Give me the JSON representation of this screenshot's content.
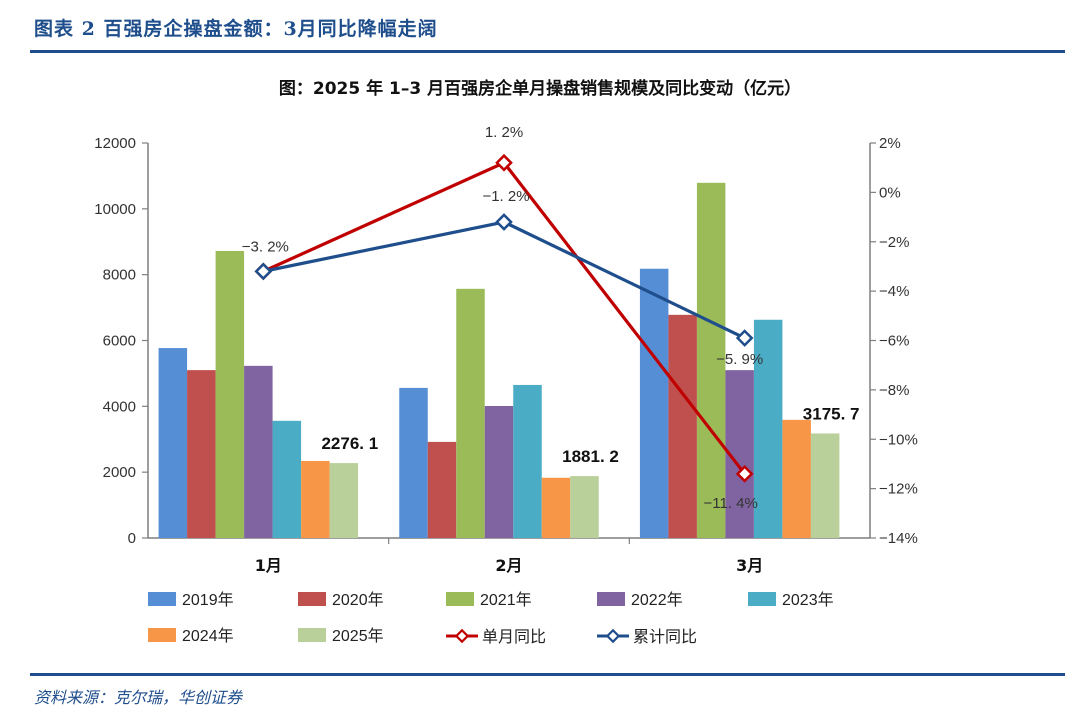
{
  "header": {
    "caption": "图表 2  百强房企操盘金额：3月同比降幅走阔"
  },
  "footer": {
    "source": "资料来源：克尔瑞，华创证券"
  },
  "chart_data": {
    "type": "bar",
    "title": "图：2025 年 1–3 月百强房企单月操盘销售规模及同比变动（亿元）",
    "categories": [
      "1月",
      "2月",
      "3月"
    ],
    "xlabel": "",
    "ylabel": "",
    "ylim": [
      0,
      12000
    ],
    "yticks": [
      "0",
      "2000",
      "4000",
      "6000",
      "8000",
      "10000",
      "12000"
    ],
    "y2lim": [
      -14,
      2
    ],
    "y2ticks": [
      "-14%",
      "-12%",
      "-10%",
      "-8%",
      "-6%",
      "-4%",
      "-2%",
      "0%",
      "2%"
    ],
    "grid": false,
    "legend_position": "bottom",
    "series": [
      {
        "name": "2019年",
        "type": "bar",
        "color": "#558ed5",
        "values": [
          5770,
          4560,
          8180
        ]
      },
      {
        "name": "2020年",
        "type": "bar",
        "color": "#c0504d",
        "values": [
          5100,
          2920,
          6780
        ]
      },
      {
        "name": "2021年",
        "type": "bar",
        "color": "#9bbb59",
        "values": [
          8720,
          7570,
          10790
        ]
      },
      {
        "name": "2022年",
        "type": "bar",
        "color": "#8064a2",
        "values": [
          5230,
          4010,
          5100
        ]
      },
      {
        "name": "2023年",
        "type": "bar",
        "color": "#4bacc6",
        "values": [
          3560,
          4650,
          6630
        ]
      },
      {
        "name": "2024年",
        "type": "bar",
        "color": "#f79646",
        "values": [
          2340,
          1830,
          3590
        ]
      },
      {
        "name": "2025年",
        "type": "bar",
        "color": "#b9d09a",
        "values": [
          2276.1,
          1881.2,
          3175.7
        ],
        "labels": [
          "2276. 1",
          "1881. 2",
          "3175. 7"
        ]
      },
      {
        "name": "单月同比",
        "type": "line",
        "axis": "right",
        "color": "#c00000",
        "values": [
          -3.2,
          1.2,
          -11.4
        ],
        "labels": [
          "",
          "1. 2%",
          "-11. 4%"
        ]
      },
      {
        "name": "累计同比",
        "type": "line",
        "axis": "right",
        "color": "#1f4e8c",
        "values": [
          -3.2,
          -1.2,
          -5.9
        ],
        "labels": [
          "-3. 2%",
          "-1. 2%",
          "-5. 9%"
        ]
      }
    ]
  }
}
